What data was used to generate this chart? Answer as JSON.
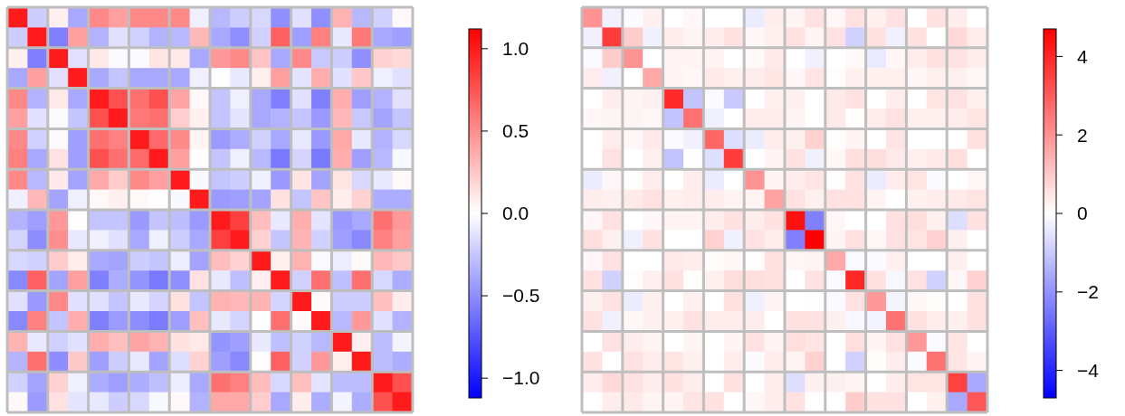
{
  "chart_data": [
    {
      "type": "heatmap",
      "grid": true,
      "categories": [
        null,
        null,
        null,
        null,
        null,
        null,
        null,
        null,
        null,
        null,
        null,
        null,
        null,
        null,
        null,
        null,
        null,
        null,
        null,
        null
      ],
      "y_categories": [
        null,
        null,
        null,
        null,
        null,
        null,
        null,
        null,
        null,
        null,
        null,
        null,
        null,
        null,
        null,
        null,
        null,
        null,
        null,
        null
      ],
      "clim": [
        -1.12,
        1.12
      ],
      "cticks": [
        {
          "value": -1,
          "label": "−1.0"
        },
        {
          "value": -0.5,
          "label": "−0.5"
        },
        {
          "value": 0,
          "label": "0.0"
        },
        {
          "value": 0.5,
          "label": "0.5"
        },
        {
          "value": 1,
          "label": "1.0"
        }
      ],
      "cells": [
        [
          1.0,
          -0.22,
          0.07,
          -0.38,
          0.52,
          0.42,
          0.52,
          0.52,
          0.52,
          -0.07,
          -0.31,
          -0.22,
          -0.17,
          -0.49,
          -0.13,
          -0.49,
          0.34,
          -0.31,
          -0.2,
          0.03
        ],
        [
          -0.22,
          1.0,
          -0.56,
          0.42,
          -0.34,
          -0.13,
          -0.2,
          -0.34,
          -0.31,
          0.31,
          -0.38,
          -0.49,
          -0.2,
          0.7,
          -0.42,
          0.56,
          -0.1,
          0.59,
          -0.38,
          -0.42
        ],
        [
          0.07,
          -0.56,
          1.0,
          -0.13,
          0.1,
          -0.02,
          -0.02,
          0.12,
          0.1,
          -0.38,
          0.45,
          0.52,
          0.26,
          -0.38,
          0.52,
          -0.24,
          -0.22,
          -0.49,
          0.2,
          0.17
        ],
        [
          -0.38,
          0.42,
          -0.13,
          1.0,
          -0.38,
          -0.26,
          -0.38,
          -0.38,
          -0.38,
          -0.07,
          0.01,
          -0.1,
          0.07,
          0.42,
          -0.12,
          0.36,
          -0.13,
          0.24,
          -0.07,
          -0.13
        ],
        [
          0.52,
          -0.34,
          0.1,
          -0.38,
          1.0,
          0.77,
          0.63,
          0.77,
          0.4,
          0.03,
          -0.26,
          -0.07,
          -0.38,
          -0.56,
          -0.13,
          -0.56,
          0.36,
          -0.42,
          -0.34,
          -0.13
        ],
        [
          0.42,
          -0.13,
          -0.02,
          -0.26,
          0.77,
          1.0,
          0.59,
          0.63,
          0.22,
          0.07,
          -0.26,
          -0.12,
          -0.38,
          -0.34,
          -0.26,
          -0.45,
          0.31,
          -0.24,
          -0.4,
          -0.26
        ],
        [
          0.52,
          -0.2,
          -0.02,
          -0.42,
          0.63,
          0.56,
          1.0,
          0.66,
          0.52,
          0.05,
          -0.44,
          -0.36,
          -0.2,
          -0.38,
          -0.1,
          -0.45,
          0.38,
          -0.1,
          -0.34,
          -0.17
        ],
        [
          0.56,
          -0.38,
          0.13,
          -0.42,
          0.77,
          0.63,
          0.66,
          1.0,
          0.42,
          0.01,
          -0.26,
          -0.07,
          -0.31,
          -0.59,
          -0.19,
          -0.59,
          0.36,
          -0.42,
          -0.31,
          -0.03
        ],
        [
          0.52,
          -0.31,
          0.1,
          -0.4,
          0.38,
          0.23,
          0.52,
          0.42,
          1.0,
          -0.03,
          -0.26,
          -0.22,
          -0.07,
          -0.45,
          0.12,
          -0.4,
          0.12,
          -0.17,
          -0.1,
          0.03
        ],
        [
          -0.07,
          0.31,
          -0.4,
          -0.07,
          0.03,
          0.07,
          0.03,
          0.01,
          -0.03,
          1.0,
          -0.44,
          -0.42,
          -0.4,
          0.13,
          -0.26,
          0.26,
          0.08,
          0.2,
          -0.36,
          -0.36
        ],
        [
          -0.34,
          -0.42,
          0.45,
          0.01,
          -0.26,
          -0.26,
          -0.45,
          -0.26,
          -0.29,
          -0.44,
          1.0,
          0.84,
          0.29,
          -0.1,
          0.36,
          -0.12,
          -0.45,
          -0.38,
          0.63,
          0.45
        ],
        [
          -0.19,
          -0.5,
          0.49,
          -0.1,
          -0.07,
          -0.13,
          -0.38,
          -0.07,
          -0.22,
          -0.38,
          0.84,
          1.0,
          0.2,
          -0.26,
          0.33,
          -0.2,
          -0.42,
          -0.52,
          0.56,
          0.42
        ],
        [
          -0.17,
          -0.2,
          0.23,
          0.08,
          -0.38,
          -0.4,
          -0.22,
          -0.26,
          -0.08,
          -0.4,
          0.29,
          0.2,
          1.0,
          0.07,
          0.34,
          -0.02,
          -0.08,
          0.02,
          0.31,
          0.24
        ],
        [
          -0.52,
          0.7,
          -0.4,
          0.42,
          -0.56,
          -0.36,
          -0.47,
          -0.59,
          -0.49,
          0.13,
          -0.1,
          -0.28,
          0.07,
          1.0,
          -0.2,
          0.63,
          -0.28,
          0.63,
          -0.17,
          -0.36
        ],
        [
          -0.13,
          -0.45,
          0.52,
          -0.13,
          -0.13,
          -0.26,
          -0.1,
          -0.19,
          0.13,
          -0.26,
          0.34,
          0.31,
          0.33,
          -0.19,
          1.0,
          0.02,
          -0.22,
          -0.22,
          0.28,
          0.08
        ],
        [
          -0.52,
          0.56,
          -0.26,
          0.36,
          -0.56,
          -0.44,
          -0.5,
          -0.58,
          -0.42,
          0.28,
          -0.1,
          -0.19,
          -0.01,
          0.63,
          0.02,
          1.0,
          -0.31,
          0.45,
          -0.13,
          -0.34
        ],
        [
          0.33,
          -0.1,
          -0.2,
          -0.13,
          0.36,
          0.28,
          0.4,
          0.34,
          0.13,
          0.1,
          -0.47,
          -0.42,
          -0.1,
          -0.28,
          -0.2,
          -0.31,
          1.0,
          0.07,
          -0.29,
          -0.05
        ],
        [
          -0.33,
          0.63,
          -0.5,
          0.24,
          -0.42,
          -0.22,
          -0.1,
          -0.4,
          -0.15,
          0.2,
          -0.42,
          -0.52,
          0.01,
          0.7,
          -0.2,
          0.45,
          0.07,
          1.0,
          -0.29,
          -0.36
        ],
        [
          -0.2,
          -0.4,
          0.2,
          -0.07,
          -0.36,
          -0.42,
          -0.36,
          -0.28,
          -0.08,
          -0.38,
          0.63,
          0.56,
          0.29,
          -0.17,
          0.28,
          -0.12,
          -0.29,
          -0.29,
          1.0,
          0.77
        ],
        [
          0.03,
          -0.44,
          0.13,
          -0.12,
          -0.1,
          -0.22,
          -0.17,
          -0.03,
          0.03,
          -0.34,
          0.38,
          0.38,
          0.22,
          -0.38,
          0.08,
          -0.36,
          -0.05,
          -0.36,
          0.77,
          1.0
        ]
      ]
    },
    {
      "type": "heatmap",
      "grid": true,
      "categories": [
        null,
        null,
        null,
        null,
        null,
        null,
        null,
        null,
        null,
        null,
        null,
        null,
        null,
        null,
        null,
        null,
        null,
        null,
        null,
        null
      ],
      "y_categories": [
        null,
        null,
        null,
        null,
        null,
        null,
        null,
        null,
        null,
        null,
        null,
        null,
        null,
        null,
        null,
        null,
        null,
        null,
        null,
        null
      ],
      "clim": [
        -4.7,
        4.7
      ],
      "cticks": [
        {
          "value": -4,
          "label": "−4"
        },
        {
          "value": -2,
          "label": "−2"
        },
        0,
        2,
        4
      ],
      "cells": [
        [
          2.0,
          -0.28,
          -0.1,
          0.28,
          0,
          0.14,
          0,
          0,
          -0.35,
          0.35,
          0.2,
          0.55,
          0.14,
          0.55,
          0.28,
          0.55,
          0,
          0.55,
          0.35,
          0
        ],
        [
          -0.28,
          3.6,
          0.94,
          -0.28,
          0.35,
          0.2,
          0.35,
          0.55,
          0.14,
          0.28,
          0.55,
          0.2,
          0.55,
          -0.85,
          0.55,
          -0.28,
          0.55,
          0,
          0.7,
          0.35
        ],
        [
          -0.1,
          0.94,
          2.0,
          0,
          0.2,
          0.2,
          0.2,
          0,
          0.1,
          0.4,
          0,
          -0.28,
          0,
          0.1,
          -0.4,
          0.14,
          0.35,
          0.55,
          0.55,
          0.35
        ],
        [
          0.35,
          -0.28,
          0,
          1.6,
          0.2,
          0.14,
          0.4,
          0.28,
          0.35,
          0.5,
          0.14,
          0.5,
          0.05,
          0.28,
          0.28,
          0.28,
          0.14,
          0.28,
          0.28,
          0.14
        ],
        [
          0,
          0.35,
          0.2,
          0.28,
          3.9,
          -1.1,
          -0.1,
          -1.0,
          0,
          0.28,
          0.28,
          0,
          0.4,
          0.55,
          0,
          0.35,
          0,
          0.5,
          0.55,
          0.28
        ],
        [
          0.14,
          0.2,
          0.2,
          0.14,
          -1.1,
          2.6,
          -0.28,
          0,
          0.35,
          0.35,
          0.2,
          0,
          0.4,
          0.05,
          0.35,
          0.55,
          0.28,
          0.28,
          0.35,
          0.5
        ],
        [
          0,
          0.35,
          0.14,
          0.4,
          -0.1,
          -0.28,
          2.8,
          -0.6,
          -0.35,
          0.35,
          0.28,
          0.85,
          0.05,
          0.2,
          0,
          0.5,
          0,
          0,
          0,
          0.55
        ],
        [
          0,
          0.55,
          0,
          0.28,
          -1.1,
          0,
          -0.6,
          3.6,
          0,
          0.2,
          0.55,
          -0.28,
          0.14,
          0.6,
          0.6,
          0.4,
          0.28,
          0.4,
          0.6,
          0
        ],
        [
          -0.35,
          0.14,
          0.05,
          0.35,
          0,
          0.35,
          -0.35,
          0,
          2.0,
          0.2,
          0.35,
          0.5,
          0.05,
          0.55,
          -0.35,
          0.35,
          0.5,
          -0.1,
          0,
          0.14
        ],
        [
          0.35,
          0.28,
          0.4,
          0.55,
          0.28,
          0.35,
          0.35,
          0.2,
          0.2,
          1.7,
          0.55,
          0.28,
          0.55,
          0.55,
          0.2,
          0,
          0.28,
          0.35,
          0.4,
          0.5
        ],
        [
          0.14,
          0.55,
          0,
          0.14,
          0.2,
          0.2,
          0.35,
          0.55,
          0.35,
          0.55,
          4.4,
          -2.35,
          0.14,
          0,
          0,
          0.55,
          0.6,
          0.28,
          -0.6,
          0.55
        ],
        [
          0.6,
          0.28,
          -0.28,
          0.55,
          0,
          0,
          0.85,
          -0.28,
          0.55,
          0.35,
          -2.35,
          4.7,
          0.2,
          0.55,
          0.14,
          0.55,
          0.5,
          0.85,
          0.28,
          0
        ],
        [
          0.14,
          0.55,
          0,
          0,
          0.4,
          0.35,
          0.05,
          0.14,
          0.05,
          0.55,
          0.14,
          0.2,
          1.6,
          -0.1,
          -0.1,
          0.28,
          0,
          0,
          0.28,
          0
        ],
        [
          0.55,
          -0.85,
          0.05,
          0.28,
          0.55,
          0.05,
          0.28,
          0.6,
          0.6,
          0.55,
          0,
          0.55,
          -0.1,
          4.0,
          0.55,
          -0.14,
          0.55,
          -0.85,
          0.14,
          0.85
        ],
        [
          0.28,
          0.55,
          -0.35,
          0.28,
          0,
          0.28,
          0,
          0.55,
          -0.28,
          0.2,
          0,
          0.05,
          -0.1,
          0.55,
          1.9,
          -0.2,
          0.14,
          0.05,
          0,
          0.55
        ],
        [
          0.55,
          -0.28,
          0.14,
          0.28,
          0.28,
          0.55,
          0.35,
          0.35,
          0.35,
          0,
          0.55,
          0.55,
          0.28,
          -0.14,
          -0.2,
          2.6,
          0.55,
          0.35,
          0.28,
          0.55
        ],
        [
          0,
          0.55,
          0.35,
          0.2,
          0,
          0.2,
          0,
          0.2,
          0.55,
          0.2,
          0.6,
          0.5,
          0,
          0.6,
          0.2,
          0.55,
          1.9,
          -0.1,
          0.5,
          0
        ],
        [
          0.55,
          0,
          0.55,
          0.35,
          0.5,
          0.28,
          0,
          0.35,
          -0.1,
          0.35,
          0.2,
          0.85,
          0,
          -0.85,
          0.05,
          0.35,
          -0.1,
          2.6,
          0.5,
          0.2
        ],
        [
          0.35,
          0.7,
          0.55,
          0.35,
          0.55,
          0.35,
          0,
          0.55,
          0,
          0.35,
          -0.6,
          0.28,
          0.28,
          0.2,
          0,
          0.35,
          0.5,
          0.5,
          3.5,
          -1.6
        ],
        [
          0,
          0.35,
          0.4,
          0.2,
          0.2,
          0.5,
          0.55,
          0,
          0.14,
          0.35,
          0.55,
          0,
          0,
          0.94,
          0.55,
          0.55,
          0,
          0.28,
          -1.6,
          3.1
        ]
      ]
    }
  ]
}
